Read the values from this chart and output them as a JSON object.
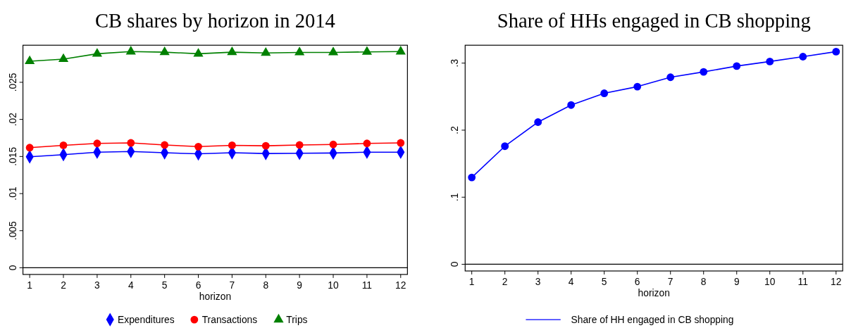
{
  "chart_data": [
    {
      "type": "line",
      "title": "CB shares by horizon in 2014",
      "xlabel": "horizon",
      "x": [
        1,
        2,
        3,
        4,
        5,
        6,
        7,
        8,
        9,
        10,
        11,
        12
      ],
      "xlim": [
        0.8,
        12.2
      ],
      "xticks": [
        1,
        2,
        3,
        4,
        5,
        6,
        7,
        8,
        9,
        10,
        11,
        12
      ],
      "ylim": [
        -0.0009,
        0.03
      ],
      "yticks": [
        0,
        {
          "value": 0.005,
          "label": ".005"
        },
        {
          "value": 0.01,
          "label": ".01"
        },
        {
          "value": 0.015,
          "label": ".015"
        },
        {
          "value": 0.02,
          "label": ".02"
        },
        {
          "value": 0.025,
          "label": ".025"
        }
      ],
      "grid": false,
      "legend": "bottom",
      "ref_lines": [
        {
          "axis": "y",
          "value": 0
        }
      ],
      "series": [
        {
          "name": "Expenditures",
          "color": "#0000ff",
          "marker": "diamond",
          "values": [
            0.01496,
            0.01525,
            0.01558,
            0.01568,
            0.0155,
            0.01536,
            0.0155,
            0.0154,
            0.01543,
            0.01547,
            0.01558,
            0.01558
          ]
        },
        {
          "name": "Transactions",
          "color": "#ff0000",
          "marker": "circle",
          "values": [
            0.01619,
            0.01651,
            0.01676,
            0.01683,
            0.01655,
            0.01633,
            0.01651,
            0.01644,
            0.01655,
            0.01662,
            0.01676,
            0.01683
          ]
        },
        {
          "name": "Trips",
          "color": "#008000",
          "marker": "triangle",
          "values": [
            0.02784,
            0.02813,
            0.02885,
            0.02914,
            0.02906,
            0.02885,
            0.02906,
            0.02896,
            0.02903,
            0.02903,
            0.0291,
            0.02914
          ]
        }
      ]
    },
    {
      "type": "line",
      "title": "Share of HHs engaged in CB shopping",
      "xlabel": "horizon",
      "x": [
        1,
        2,
        3,
        4,
        5,
        6,
        7,
        8,
        9,
        10,
        11,
        12
      ],
      "xlim": [
        0.8,
        12.2
      ],
      "xticks": [
        1,
        2,
        3,
        4,
        5,
        6,
        7,
        8,
        9,
        10,
        11,
        12
      ],
      "ylim": [
        -0.01,
        0.3267
      ],
      "yticks": [
        0,
        {
          "value": 0.1,
          "label": ".1"
        },
        {
          "value": 0.2,
          "label": ".2"
        },
        {
          "value": 0.3,
          "label": ".3"
        }
      ],
      "grid": false,
      "legend": "bottom",
      "ref_lines": [
        {
          "axis": "y",
          "value": 0
        }
      ],
      "series": [
        {
          "name": "Share of HH engaged in CB shopping",
          "color": "#0000ff",
          "marker": "circle",
          "values": [
            0.1295,
            0.1761,
            0.212,
            0.2375,
            0.255,
            0.2649,
            0.2789,
            0.2869,
            0.2956,
            0.3024,
            0.3096,
            0.3171
          ]
        }
      ]
    }
  ]
}
